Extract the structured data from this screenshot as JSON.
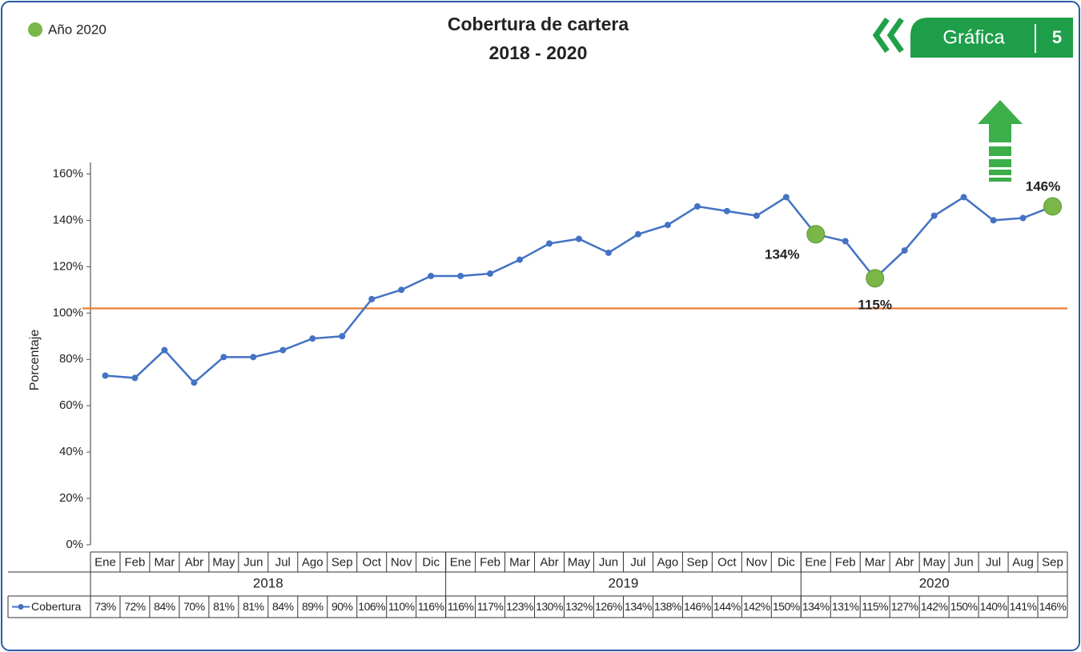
{
  "header": {
    "label": "Gráfica",
    "number": "5"
  },
  "chart_data": {
    "type": "line",
    "title": "Cobertura de cartera",
    "subtitle": "2018 - 2020",
    "y_label": "Porcentaje",
    "categories": [
      "Ene",
      "Feb",
      "Mar",
      "Abr",
      "May",
      "Jun",
      "Jul",
      "Ago",
      "Sep",
      "Oct",
      "Nov",
      "Dic",
      "Ene",
      "Feb",
      "Mar",
      "Abr",
      "May",
      "Jun",
      "Jul",
      "Ago",
      "Sep",
      "Oct",
      "Nov",
      "Dic",
      "Ene",
      "Feb",
      "Mar",
      "Abr",
      "May",
      "Jun",
      "Jul",
      "Aug",
      "Sep"
    ],
    "years": [
      "2018",
      "2019",
      "2020"
    ],
    "series": [
      {
        "name": "Cobertura",
        "color": "#4472c4",
        "values": [
          73,
          72,
          84,
          70,
          81,
          81,
          84,
          89,
          90,
          106,
          110,
          116,
          116,
          117,
          123,
          130,
          132,
          126,
          134,
          138,
          146,
          144,
          142,
          150,
          134,
          131,
          115,
          127,
          142,
          150,
          140,
          141,
          146
        ],
        "value_labels": [
          "73%",
          "72%",
          "84%",
          "70%",
          "81%",
          "81%",
          "84%",
          "89%",
          "90%",
          "106%",
          "110%",
          "116%",
          "116%",
          "117%",
          "123%",
          "130%",
          "132%",
          "126%",
          "134%",
          "138%",
          "146%",
          "144%",
          "142%",
          "150%",
          "134%",
          "131%",
          "115%",
          "127%",
          "142%",
          "150%",
          "140%",
          "141%",
          "146%"
        ]
      }
    ],
    "highlight": {
      "name": "Año 2020",
      "color": "#7ab648",
      "indices": [
        24,
        26,
        32
      ]
    },
    "reference_line": {
      "value": 102,
      "color": "#ed7d31"
    },
    "ylim": [
      0,
      165
    ],
    "yticks": [
      {
        "value": 0,
        "label": "0%"
      },
      {
        "value": 20,
        "label": "20%"
      },
      {
        "value": 40,
        "label": "40%"
      },
      {
        "value": 60,
        "label": "60%"
      },
      {
        "value": 80,
        "label": "80%"
      },
      {
        "value": 100,
        "label": "100%"
      },
      {
        "value": 120,
        "label": "120%"
      },
      {
        "value": 140,
        "label": "140%"
      },
      {
        "value": 160,
        "label": "160%"
      }
    ],
    "legend": "top-left"
  }
}
